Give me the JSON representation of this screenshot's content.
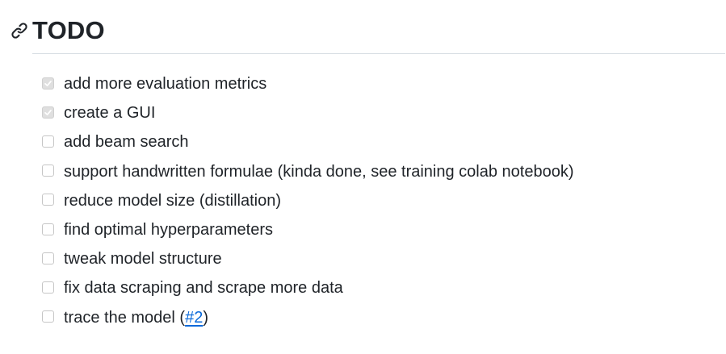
{
  "heading": {
    "title": "TODO",
    "anchor_icon": "link-icon"
  },
  "tasks": [
    {
      "label": "add more evaluation metrics",
      "checked": true
    },
    {
      "label": "create a GUI",
      "checked": true
    },
    {
      "label": "add beam search",
      "checked": false
    },
    {
      "label": "support handwritten formulae (kinda done, see training colab notebook)",
      "checked": false
    },
    {
      "label": "reduce model size (distillation)",
      "checked": false
    },
    {
      "label": "find optimal hyperparameters",
      "checked": false
    },
    {
      "label": "tweak model structure",
      "checked": false
    },
    {
      "label": "fix data scraping and scrape more data",
      "checked": false
    },
    {
      "label_prefix": "trace the model (",
      "link_text": "#2",
      "label_suffix": ")",
      "checked": false
    }
  ],
  "colors": {
    "text": "#1f2328",
    "link": "#0969da",
    "rule": "#d8dee4",
    "checkbox_border": "#c6c6c6",
    "checkbox_checked_bg": "#dfdfdf"
  }
}
